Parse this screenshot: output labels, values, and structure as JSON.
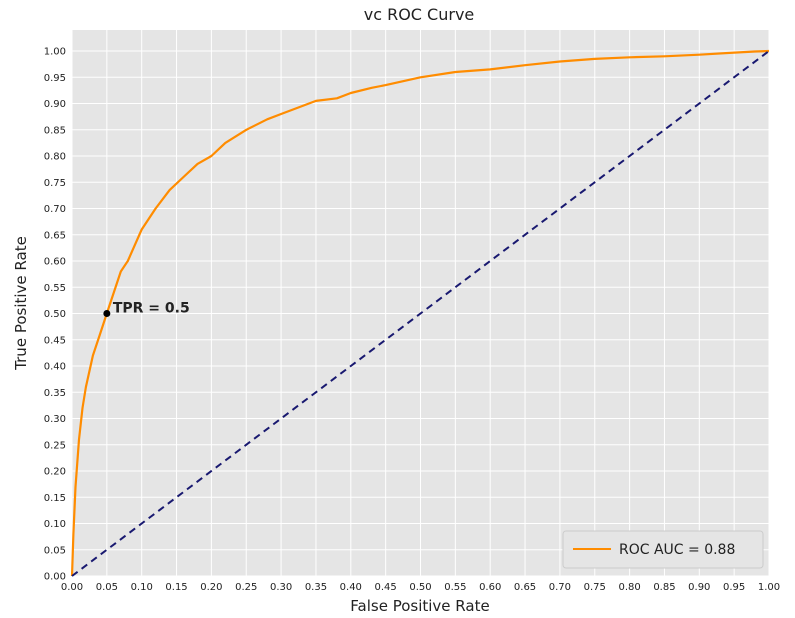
{
  "chart_data": {
    "type": "line",
    "title": "vc ROC Curve",
    "xlabel": "False Positive Rate",
    "ylabel": "True Positive Rate",
    "xlim": [
      0,
      1
    ],
    "ylim": [
      0,
      1.04
    ],
    "grid": true,
    "legend_position": "bottom-right",
    "x_ticks": [
      "0.00",
      "0.05",
      "0.10",
      "0.15",
      "0.20",
      "0.25",
      "0.30",
      "0.35",
      "0.40",
      "0.45",
      "0.50",
      "0.55",
      "0.60",
      "0.65",
      "0.70",
      "0.75",
      "0.80",
      "0.85",
      "0.90",
      "0.95",
      "1.00"
    ],
    "y_ticks": [
      "0.00",
      "0.05",
      "0.10",
      "0.15",
      "0.20",
      "0.25",
      "0.30",
      "0.35",
      "0.40",
      "0.45",
      "0.50",
      "0.55",
      "0.60",
      "0.65",
      "0.70",
      "0.75",
      "0.80",
      "0.85",
      "0.90",
      "0.95",
      "1.00"
    ],
    "series": [
      {
        "name": "ROC AUC = 0.88",
        "color": "#ff8c00",
        "style": "solid",
        "x": [
          0,
          0.002,
          0.005,
          0.01,
          0.015,
          0.02,
          0.025,
          0.03,
          0.04,
          0.05,
          0.06,
          0.07,
          0.08,
          0.09,
          0.1,
          0.12,
          0.14,
          0.16,
          0.18,
          0.2,
          0.22,
          0.25,
          0.28,
          0.3,
          0.33,
          0.35,
          0.38,
          0.4,
          0.43,
          0.45,
          0.5,
          0.55,
          0.6,
          0.65,
          0.7,
          0.75,
          0.8,
          0.85,
          0.9,
          0.95,
          0.98,
          1.0
        ],
        "y": [
          0,
          0.08,
          0.17,
          0.26,
          0.32,
          0.36,
          0.39,
          0.42,
          0.46,
          0.5,
          0.54,
          0.58,
          0.6,
          0.63,
          0.66,
          0.7,
          0.735,
          0.76,
          0.785,
          0.8,
          0.825,
          0.85,
          0.87,
          0.88,
          0.895,
          0.905,
          0.91,
          0.92,
          0.93,
          0.935,
          0.95,
          0.96,
          0.965,
          0.973,
          0.98,
          0.985,
          0.988,
          0.99,
          0.993,
          0.997,
          0.999,
          1.0
        ]
      },
      {
        "name": "",
        "color": "#191970",
        "style": "dashed",
        "x": [
          0,
          1
        ],
        "y": [
          0,
          1
        ]
      }
    ],
    "point": {
      "x": 0.05,
      "y": 0.5
    },
    "annotation": {
      "text": "TPR = 0.5",
      "x": 0.05,
      "y": 0.5
    },
    "legend_label": "ROC AUC = 0.88"
  }
}
